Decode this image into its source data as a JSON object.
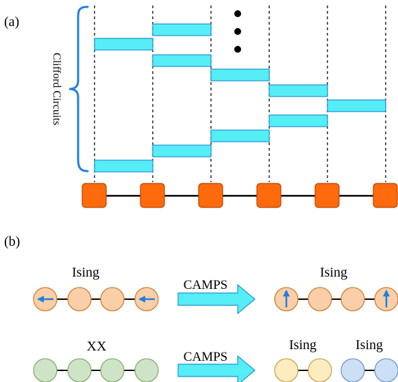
{
  "panel_a": {
    "label": "(a)",
    "bracket_label": "Clifford Circuits",
    "colors": {
      "gate_fill": "#55eef7",
      "gate_stroke": "#1f8fd6",
      "node_fill": "#ff6a0c",
      "node_stroke": "#b64200",
      "bracket": "#1e7fe0"
    },
    "ellipsis": "vertical-dots"
  },
  "panel_b": {
    "label": "(b)",
    "rows": [
      {
        "left_label": "Ising",
        "arrow_label": "CAMPS",
        "right_label": "Ising",
        "left_chain": {
          "fill": "#f8cfa8",
          "stroke": "#d07a2c",
          "edge_icons": "left-arrow-icon"
        },
        "right_chain": {
          "fill": "#f8cfa8",
          "stroke": "#d07a2c",
          "edge_icons": "up-arrow-icon"
        }
      },
      {
        "left_label": "XX",
        "arrow_label": "CAMPS",
        "right_labels": [
          "Ising",
          "Ising"
        ],
        "left_chain": {
          "fill": "#cfe3c7",
          "stroke": "#7fae6a"
        },
        "right_chain": [
          {
            "fill": "#fdecbf",
            "stroke": "#c9a24a"
          },
          {
            "fill": "#cddff5",
            "stroke": "#6f95c8"
          }
        ]
      }
    ],
    "colors": {
      "arrow_fill": "#55eef7",
      "arrow_stroke": "#1f8fd6",
      "spin_arrow": "#1e7fe0"
    }
  }
}
